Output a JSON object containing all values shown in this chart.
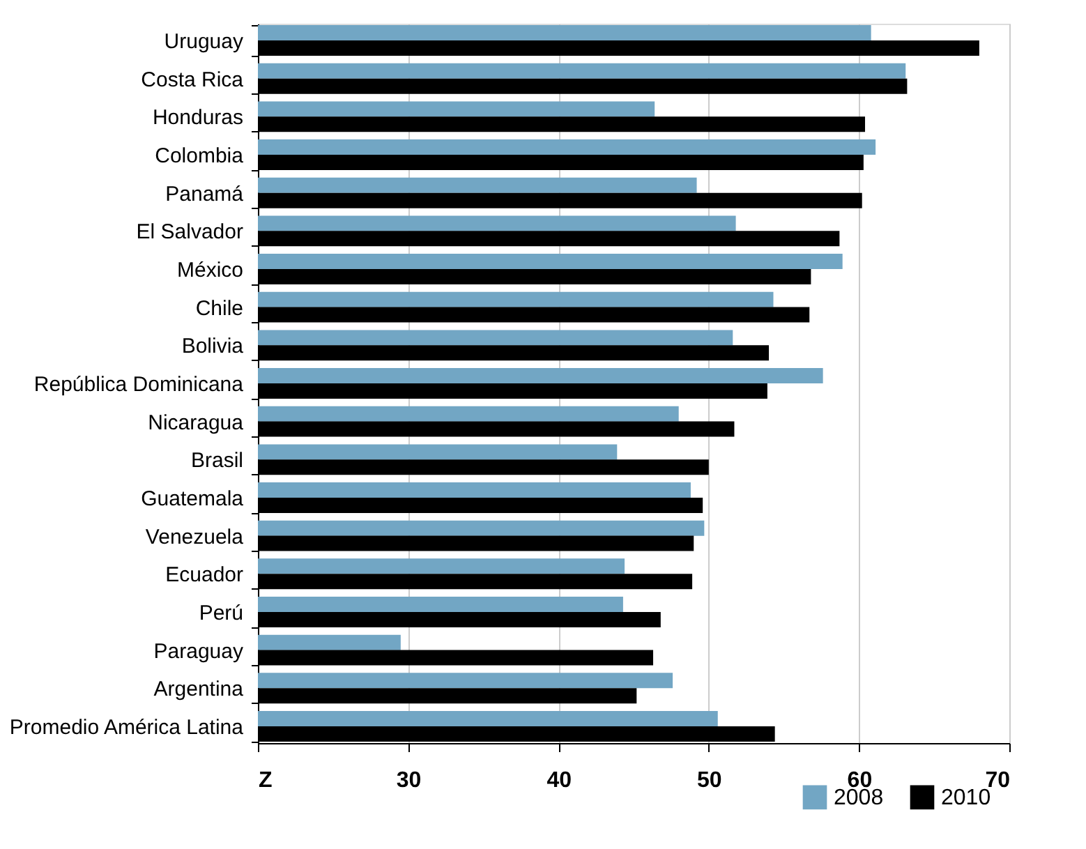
{
  "chart_data": {
    "type": "bar",
    "orientation": "horizontal",
    "categories": [
      "Uruguay",
      "Costa Rica",
      "Honduras",
      "Colombia",
      "Panamá",
      "El Salvador",
      "México",
      "Chile",
      "Bolivia",
      "República Dominicana",
      "Nicaragua",
      "Brasil",
      "Guatemala",
      "Venezuela",
      "Ecuador",
      "Perú",
      "Paraguay",
      "Argentina",
      "Promedio América Latina"
    ],
    "series": [
      {
        "name": "2008",
        "color": "#72a6c4",
        "values": [
          60.8,
          63.1,
          46.4,
          61.1,
          49.2,
          51.8,
          58.9,
          54.3,
          51.6,
          57.6,
          48.0,
          43.9,
          48.8,
          49.7,
          44.4,
          44.3,
          29.5,
          47.6,
          50.6
        ]
      },
      {
        "name": "2010",
        "color": "#000000",
        "values": [
          68.0,
          63.2,
          60.4,
          60.3,
          60.2,
          58.7,
          56.8,
          56.7,
          54.0,
          53.9,
          51.7,
          50.0,
          49.6,
          49.0,
          48.9,
          46.8,
          46.3,
          45.2,
          54.4
        ]
      }
    ],
    "xlim": [
      20,
      70
    ],
    "xticks": [
      {
        "value": 20,
        "label": "Z"
      },
      30,
      40,
      50,
      60,
      70
    ],
    "grid": "x",
    "legend": "bottom right"
  }
}
